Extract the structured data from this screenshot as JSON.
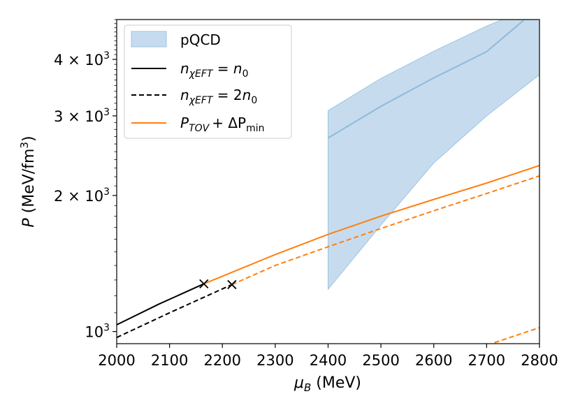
{
  "chart_data": {
    "type": "line",
    "xlabel": "μ_B (MeV)",
    "ylabel": "P (MeV/fm³)",
    "xlim": [
      2000,
      2800
    ],
    "ylim": [
      940,
      4900
    ],
    "yscale": "log",
    "grid": false,
    "legend_position": "top-left",
    "x_ticks": [
      2000,
      2100,
      2200,
      2300,
      2400,
      2500,
      2600,
      2700,
      2800
    ],
    "y_ticks": [
      {
        "value": 1000,
        "mantissa": "",
        "exponent": "3"
      },
      {
        "value": 2000,
        "mantissa": "2",
        "exponent": "3"
      },
      {
        "value": 3000,
        "mantissa": "3",
        "exponent": "3"
      },
      {
        "value": 4000,
        "mantissa": "4",
        "exponent": "3"
      }
    ],
    "legend": {
      "pqcd": "pQCD",
      "n1": {
        "var": "n",
        "sub": "χEFT",
        "rhs": "n",
        "rhs_sub": "0",
        "coef": ""
      },
      "n2": {
        "var": "n",
        "sub": "χEFT",
        "rhs": "n",
        "rhs_sub": "0",
        "coef": "2"
      },
      "tov": {
        "var": "P",
        "sub": "TOV",
        "op": "+ ΔP",
        "op_sub": "min"
      }
    },
    "colors": {
      "black": "#000000",
      "orange": "#ff7f0e",
      "band_fill": "#c6dcee",
      "band_edge": "#9dc3e1",
      "pqcd_line": "#93bbdc"
    },
    "series": [
      {
        "name": "pQCD",
        "kind": "band",
        "x": [
          2400,
          2500,
          2600,
          2700,
          2800
        ],
        "lower": [
          1240,
          1720,
          2360,
          3000,
          3700
        ],
        "upper": [
          3080,
          3630,
          4170,
          4740,
          5300
        ]
      },
      {
        "name": "pQCD",
        "kind": "central",
        "x": [
          2400,
          2500,
          2600,
          2700,
          2770
        ],
        "y": [
          2680,
          3150,
          3640,
          4160,
          4880
        ]
      },
      {
        "name": "n_χEFT = n_0",
        "style": "solid",
        "color": "black",
        "x": [
          2000,
          2080,
          2165
        ],
        "y": [
          1035,
          1150,
          1275
        ]
      },
      {
        "name": "n_χEFT = 2n_0",
        "style": "dashed",
        "color": "black",
        "x": [
          2000,
          2100,
          2218
        ],
        "y": [
          970,
          1100,
          1270
        ]
      },
      {
        "name": "P_TOV + ΔP_min",
        "style": "solid",
        "color": "orange",
        "x": [
          2165,
          2300,
          2400,
          2500,
          2600,
          2700,
          2800
        ],
        "y": [
          1275,
          1480,
          1640,
          1800,
          1960,
          2130,
          2330
        ]
      },
      {
        "name": "P_TOV + ΔP_min",
        "style": "dashed",
        "color": "orange",
        "x": [
          2218,
          2300,
          2400,
          2500,
          2600,
          2700,
          2800
        ],
        "y": [
          1270,
          1400,
          1540,
          1690,
          1850,
          2020,
          2210
        ]
      },
      {
        "name": "P_TOV + ΔP_min",
        "style": "dashed",
        "color": "orange",
        "x": [
          2715,
          2800
        ],
        "y": [
          945,
          1020
        ]
      }
    ],
    "markers": [
      {
        "x": 2165,
        "y": 1275,
        "symbol": "x"
      },
      {
        "x": 2218,
        "y": 1270,
        "symbol": "x"
      }
    ]
  }
}
